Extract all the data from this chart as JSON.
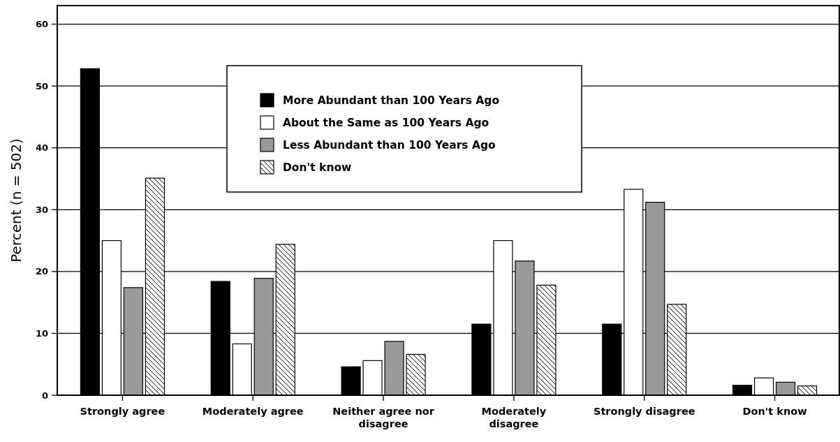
{
  "chart_data": {
    "type": "bar",
    "ylabel": "Percent (n = 502)",
    "categories": [
      "Strongly agree",
      "Moderately agree",
      "Neither agree nor disagree",
      "Moderately disagree",
      "Strongly disagree",
      "Don't know"
    ],
    "series": [
      {
        "name": "More Abundant than 100 Years Ago",
        "color": "#000000",
        "values": [
          52.8,
          18.4,
          4.6,
          11.5,
          11.5,
          1.6
        ]
      },
      {
        "name": "About the Same as 100 Years Ago",
        "color": "#ffffff",
        "values": [
          25.0,
          8.3,
          5.6,
          25.0,
          33.3,
          2.8
        ]
      },
      {
        "name": "Less Abundant than 100 Years Ago",
        "color": "#999999",
        "values": [
          17.4,
          18.9,
          8.7,
          21.7,
          31.2,
          2.1
        ]
      },
      {
        "name": "Don't know",
        "color": "#000000",
        "values": [
          35.1,
          24.4,
          6.6,
          17.8,
          14.7,
          1.5
        ]
      }
    ],
    "ylim": [
      0,
      63
    ],
    "yticks": [
      0,
      10,
      20,
      30,
      40,
      50,
      60
    ],
    "grid": "y",
    "legend": "top"
  }
}
